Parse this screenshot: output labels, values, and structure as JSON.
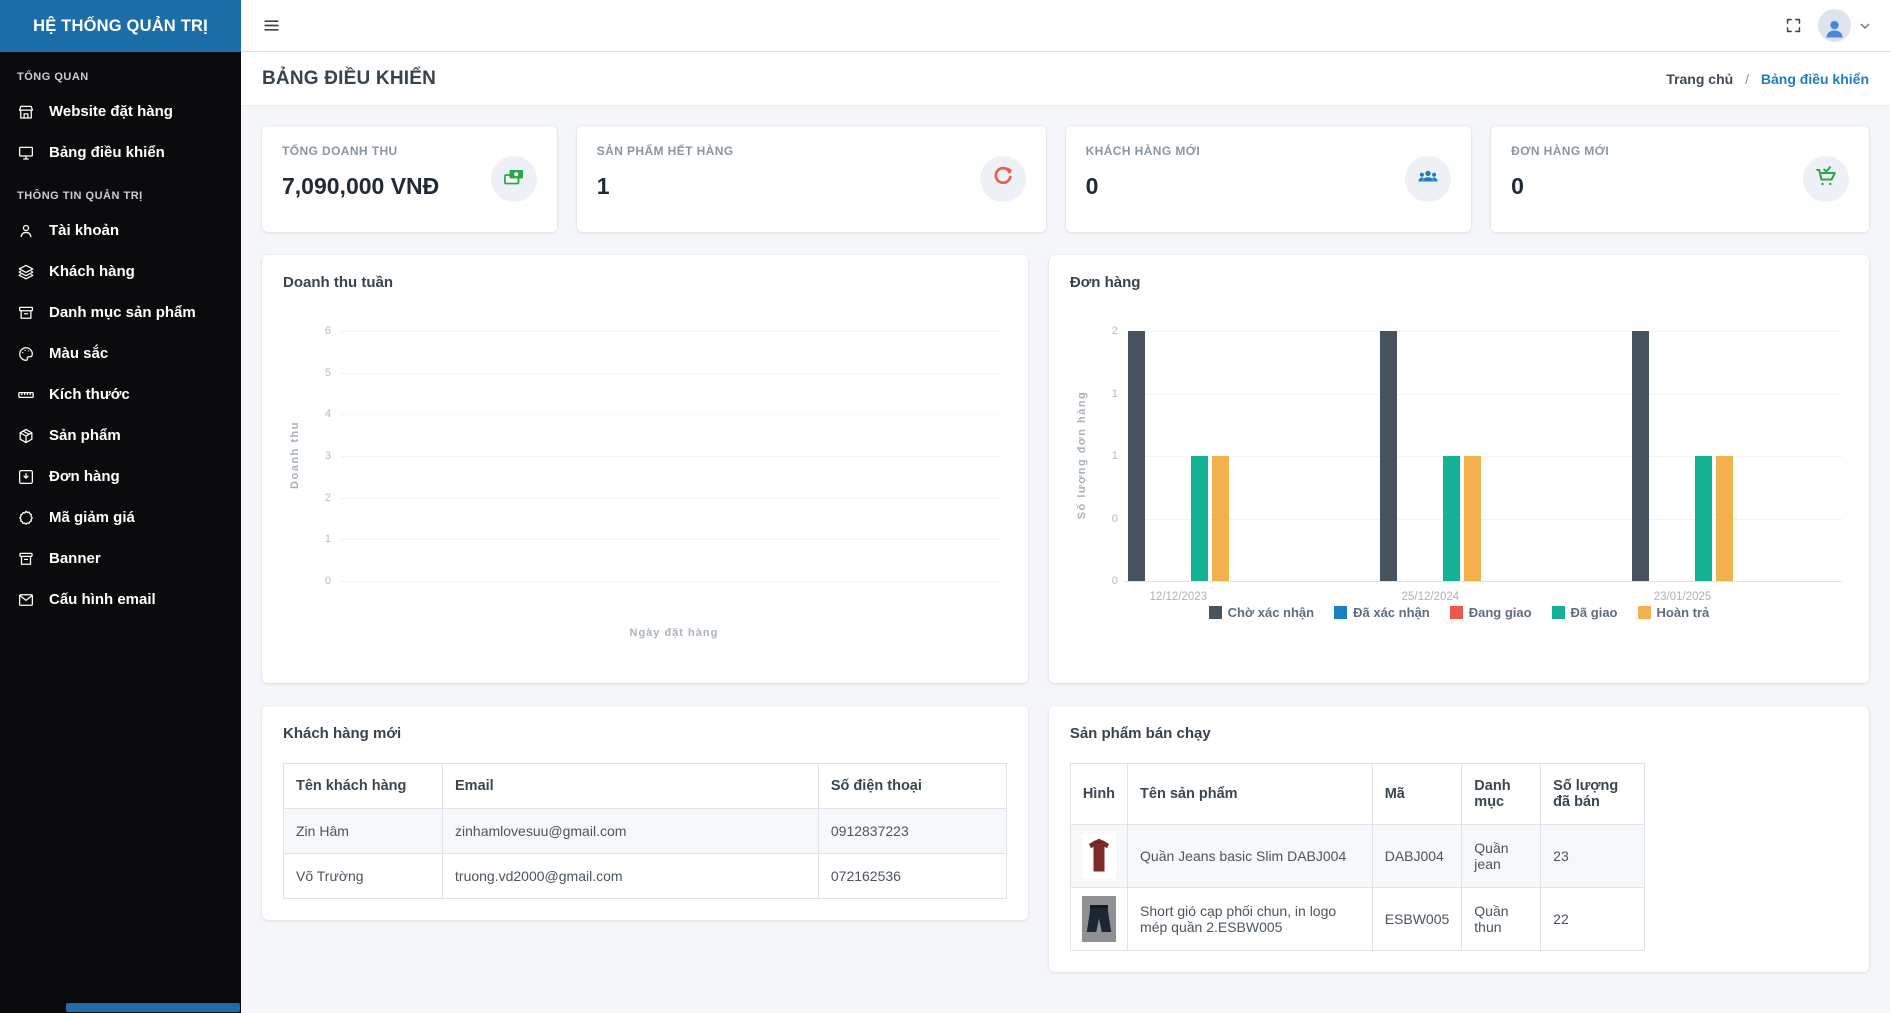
{
  "colors": {
    "brand_bg": "#1b6ea8",
    "sidebar_bg": "#0b0b0d",
    "content_bg": "#f4f6f9",
    "link_blue": "#1b7ec2"
  },
  "sidebar": {
    "brand": "HỆ THỐNG QUẢN TRỊ",
    "sections": [
      {
        "label": "TỔNG QUAN",
        "items": [
          {
            "icon": "storefront-icon",
            "label": "Website đặt hàng"
          },
          {
            "icon": "monitor-icon",
            "label": "Bảng điều khiển"
          }
        ]
      },
      {
        "label": "THÔNG TIN QUẢN TRỊ",
        "items": [
          {
            "icon": "user-icon",
            "label": "Tài khoản"
          },
          {
            "icon": "layers-icon",
            "label": "Khách hàng"
          },
          {
            "icon": "archive-icon",
            "label": "Danh mục sản phẩm"
          },
          {
            "icon": "palette-icon",
            "label": "Màu sắc"
          },
          {
            "icon": "ruler-icon",
            "label": "Kích thước"
          },
          {
            "icon": "package-icon",
            "label": "Sản phẩm"
          },
          {
            "icon": "inbox-in-icon",
            "label": "Đơn hàng"
          },
          {
            "icon": "discount-badge-icon",
            "label": "Mã giảm giá"
          },
          {
            "icon": "banner-box-icon",
            "label": "Banner"
          },
          {
            "icon": "mail-icon",
            "label": "Cấu hình email"
          }
        ]
      }
    ]
  },
  "topbar": {
    "icons": [
      "menu-icon",
      "fullscreen-icon",
      "avatar",
      "dropdown-caret-icon"
    ]
  },
  "page_header": {
    "title": "BẢNG ĐIỀU KHIỂN",
    "breadcrumb": {
      "separator": "/",
      "items": [
        {
          "label": "Trang chủ",
          "active": false
        },
        {
          "label": "Bảng điều khiển",
          "active": true
        }
      ]
    }
  },
  "stats": [
    {
      "label": "TỔNG DOANH THU",
      "value": "7,090,000 VNĐ",
      "icon": "banknotes-icon",
      "icon_color": "#28a745"
    },
    {
      "label": "SẢN PHẨM HẾT HÀNG",
      "value": "1",
      "icon": "refresh-icon",
      "icon_color": "#e8604c"
    },
    {
      "label": "KHÁCH HÀNG MỚI",
      "value": "0",
      "icon": "users-group-icon",
      "icon_color": "#1c7fbf"
    },
    {
      "label": "ĐƠN HÀNG MỚI",
      "value": "0",
      "icon": "cart-check-icon",
      "icon_color": "#28a745"
    }
  ],
  "chart_data": [
    {
      "type": "line",
      "title": "Doanh thu tuần",
      "xlabel": "Ngày đặt hàng",
      "ylabel": "Doanh thu",
      "ylim": [
        0,
        6
      ],
      "yticks": [
        6,
        5,
        4,
        3,
        2,
        1,
        0
      ],
      "x": [],
      "series": [],
      "grid": true,
      "legend_position": "none"
    },
    {
      "type": "bar",
      "title": "Đơn hàng",
      "ylabel": "Số lượng đơn hàng",
      "ylim": [
        0,
        2
      ],
      "ytick_labels": [
        "2",
        "1",
        "1",
        "0",
        "0"
      ],
      "categories": [
        "12/12/2023",
        "25/12/2024",
        "23/01/2025"
      ],
      "series": [
        {
          "name": "Chờ xác nhận",
          "color": "#475460",
          "values": [
            2,
            2,
            2
          ]
        },
        {
          "name": "Đã xác nhận",
          "color": "#1b7ec2",
          "values": [
            0,
            0,
            0
          ]
        },
        {
          "name": "Đang giao",
          "color": "#ea5a46",
          "values": [
            0,
            0,
            0
          ]
        },
        {
          "name": "Đã giao",
          "color": "#14b295",
          "values": [
            1,
            1,
            1
          ]
        },
        {
          "name": "Hoàn trả",
          "color": "#f3b14d",
          "values": [
            1,
            1,
            1
          ]
        }
      ],
      "grid": true,
      "legend_position": "bottom"
    }
  ],
  "tables": {
    "customers": {
      "title": "Khách hàng mới",
      "headers": [
        "Tên khách hàng",
        "Email",
        "Số điện thoại"
      ],
      "rows": [
        [
          "Zin Hâm",
          "zinhamlovesuu@gmail.com",
          "0912837223"
        ],
        [
          "Võ Trường",
          "truong.vd2000@gmail.com",
          "072162536"
        ]
      ]
    },
    "best_sellers": {
      "title": "Sản phẩm bán chạy",
      "headers": [
        "Hình",
        "Tên sản phẩm",
        "Mã",
        "Danh mục",
        "Số lượng đã bán"
      ],
      "rows": [
        {
          "image": "red-tshirt",
          "name": "Quần Jeans basic Slim DABJ004",
          "code": "DABJ004",
          "category": "Quần jean",
          "sold": "23"
        },
        {
          "image": "black-shorts",
          "name": "Short gió cạp phối chun, in logo mép quần 2.ESBW005",
          "code": "ESBW005",
          "category": "Quần thun",
          "sold": "22"
        }
      ]
    }
  }
}
